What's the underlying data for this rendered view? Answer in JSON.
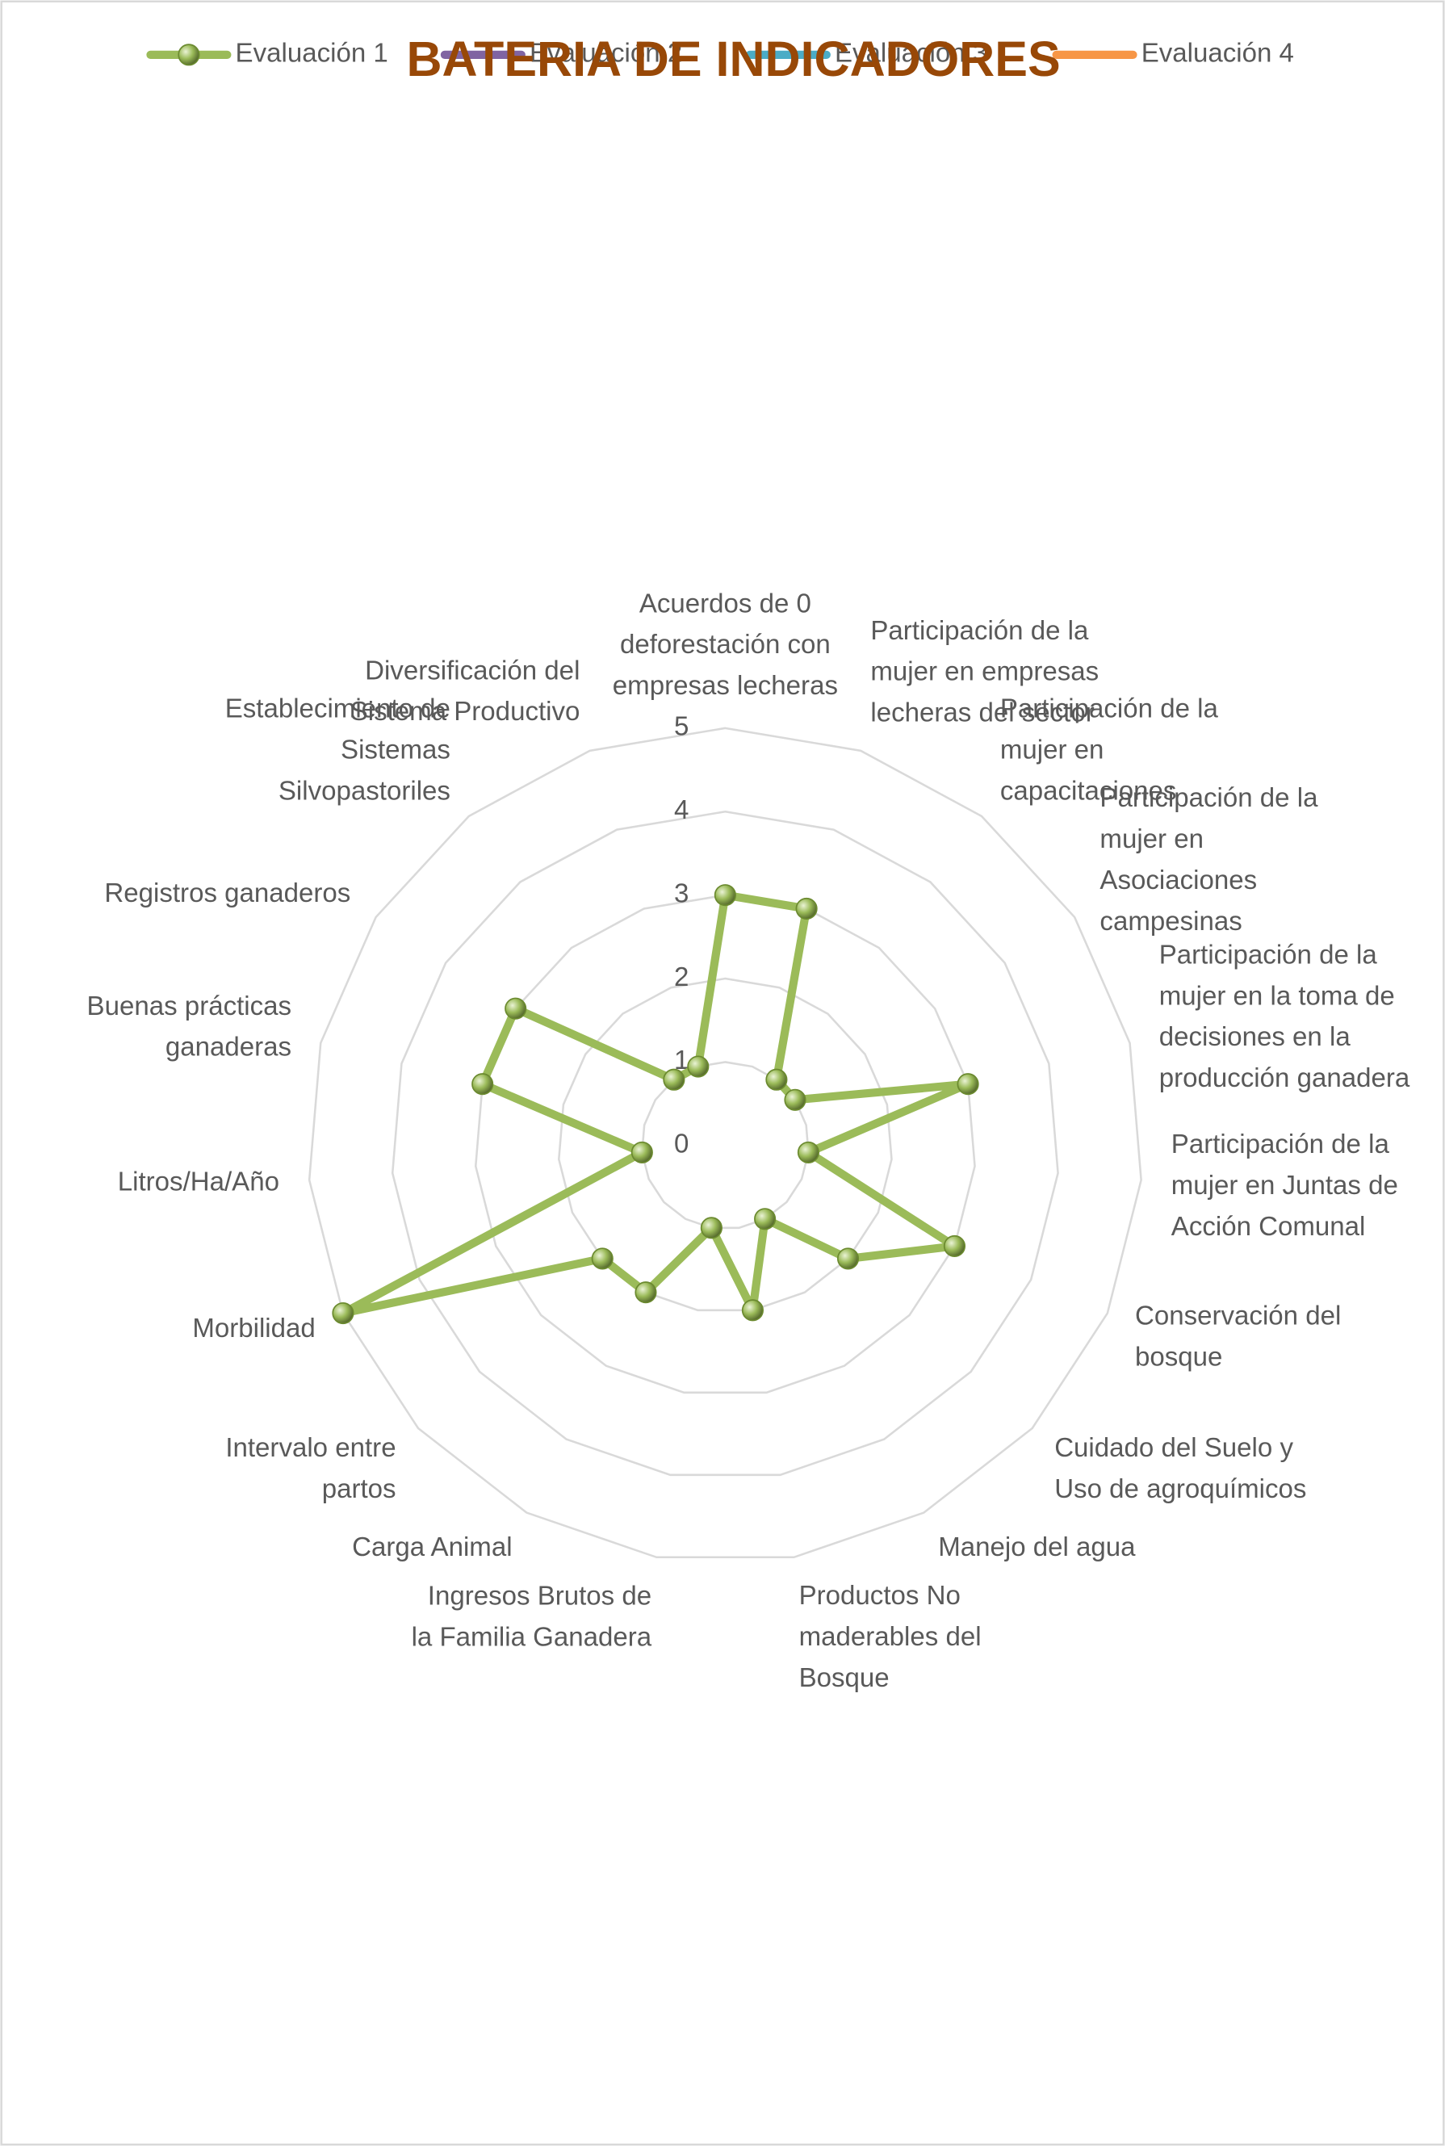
{
  "chart_data": {
    "type": "radar",
    "title": "BATERIA DE INDICADORES",
    "categories": [
      "Acuerdos de 0 deforestación con empresas lecheras",
      "Participación de la mujer en empresas lecheras del sector",
      "Participación de la mujer en capacitaciones",
      "Participación de la mujer en Asociaciones campesinas",
      "Participación de la mujer en la toma de decisiones en la producción ganadera",
      "Participación de la mujer en Juntas de Acción Comunal",
      "Conservación del bosque",
      "Cuidado del Suelo y Uso de agroquímicos",
      "Manejo del agua",
      "Productos No maderables del Bosque",
      "Ingresos Brutos de la Familia Ganadera",
      "Carga Animal",
      "Intervalo entre partos",
      "Morbilidad",
      "Litros/Ha/Año",
      "Buenas prácticas ganaderas",
      "Registros ganaderos",
      "Establecimiento de Sistemas Silvopastoriles",
      "Diversificación del Sistema Productivo"
    ],
    "series": [
      {
        "name": "Evaluación 1",
        "color": "#9bbb59",
        "values": [
          3,
          3,
          1,
          1,
          3,
          1,
          3,
          2,
          1,
          2,
          1,
          2,
          2,
          5,
          1,
          3,
          3,
          1,
          1
        ]
      },
      {
        "name": "Evaluación 2",
        "color": "#8064a2",
        "values": [
          null,
          null,
          null,
          null,
          null,
          null,
          null,
          null,
          null,
          null,
          null,
          null,
          null,
          null,
          null,
          null,
          null,
          null,
          null
        ]
      },
      {
        "name": "Evaluación 3",
        "color": "#4bacc6",
        "values": [
          null,
          null,
          null,
          null,
          null,
          null,
          null,
          null,
          null,
          null,
          null,
          null,
          null,
          null,
          null,
          null,
          null,
          null,
          null
        ]
      },
      {
        "name": "Evaluación 4",
        "color": "#f79646",
        "values": [
          null,
          null,
          null,
          null,
          null,
          null,
          null,
          null,
          null,
          null,
          null,
          null,
          null,
          null,
          null,
          null,
          null,
          null,
          null
        ]
      }
    ],
    "rlim": [
      0,
      5
    ],
    "rticks": [
      0,
      1,
      2,
      3,
      4,
      5
    ],
    "grid": true,
    "legend": "top"
  }
}
